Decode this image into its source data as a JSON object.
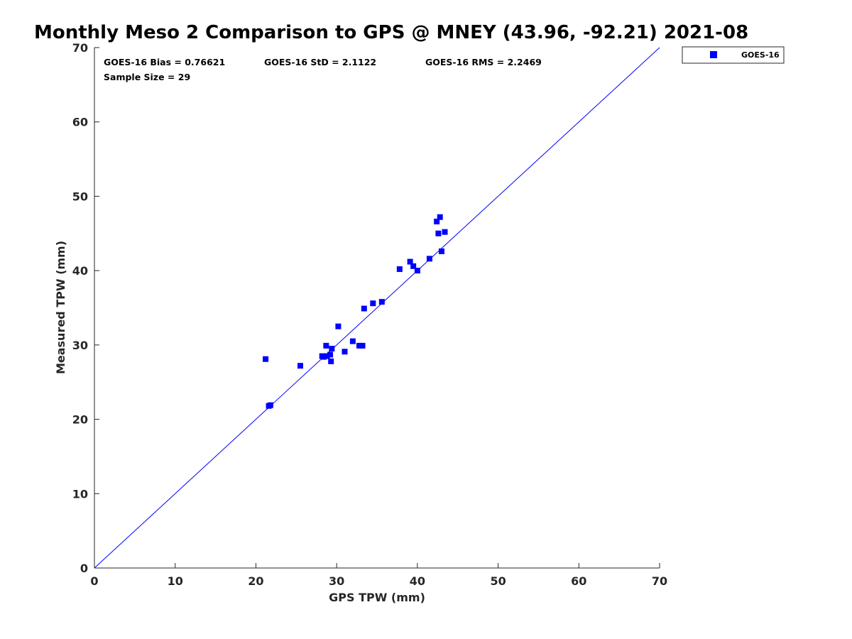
{
  "chart_data": {
    "type": "scatter",
    "title": "Monthly Meso 2 Comparison to GPS @ MNEY (43.96, -92.21) 2021-08",
    "xlabel": "GPS TPW (mm)",
    "ylabel": "Measured TPW (mm)",
    "xlim": [
      0,
      70
    ],
    "ylim": [
      0,
      70
    ],
    "xticks": [
      0,
      10,
      20,
      30,
      40,
      50,
      60,
      70
    ],
    "yticks": [
      0,
      10,
      20,
      30,
      40,
      50,
      60,
      70
    ],
    "grid": false,
    "legend_position": "top-right, outside plot",
    "stats": {
      "bias": "GOES-16 Bias = 0.76621",
      "std": "GOES-16 StD = 2.1122",
      "rms": "GOES-16 RMS = 2.2469",
      "sample": "Sample Size = 29"
    },
    "reference_line": {
      "name": "1:1",
      "x": [
        0,
        70
      ],
      "y": [
        0,
        70
      ],
      "color": "#0000ff"
    },
    "series": [
      {
        "name": "GOES-16",
        "color": "#0000ff",
        "marker": "square",
        "x": [
          21.2,
          21.6,
          21.8,
          25.5,
          28.2,
          28.4,
          28.7,
          28.8,
          29.2,
          29.3,
          29.4,
          30.2,
          31.0,
          32.0,
          32.8,
          33.2,
          33.4,
          34.5,
          35.6,
          37.8,
          39.1,
          39.5,
          40.0,
          41.5,
          42.4,
          42.6,
          42.8,
          43.0,
          43.4
        ],
        "y": [
          28.1,
          21.8,
          21.9,
          27.2,
          28.5,
          28.4,
          29.9,
          28.5,
          28.7,
          27.8,
          29.5,
          32.5,
          29.1,
          30.5,
          29.9,
          29.9,
          34.9,
          35.6,
          35.8,
          40.2,
          41.2,
          40.6,
          40.0,
          41.6,
          46.6,
          45.0,
          47.2,
          42.6,
          45.2
        ]
      }
    ]
  }
}
